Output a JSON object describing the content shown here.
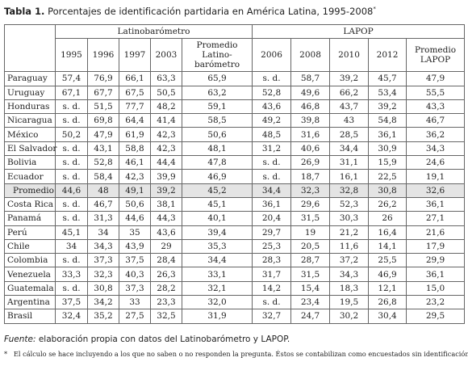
{
  "header": {
    "label": "Tabla 1.",
    "title": "Porcentajes de identificación partidaria en América Latina, 1995-2008",
    "title_mark": "*"
  },
  "table": {
    "groups": [
      "Latinobarómetro",
      "LAPOP"
    ],
    "columns": [
      [
        "1995"
      ],
      [
        "1996"
      ],
      [
        "1997"
      ],
      [
        "2003"
      ],
      [
        "Promedio",
        "Latino-",
        "barómetro"
      ],
      [
        "2006"
      ],
      [
        "2008"
      ],
      [
        "2010"
      ],
      [
        "2012"
      ],
      [
        "Promedio",
        "LAPOP"
      ]
    ],
    "rows": [
      [
        "Paraguay",
        "57,4",
        "76,9",
        "66,1",
        "63,3",
        "65,9",
        "s. d.",
        "58,7",
        "39,2",
        "45,7",
        "47,9"
      ],
      [
        "Uruguay",
        "67,1",
        "67,7",
        "67,5",
        "50,5",
        "63,2",
        "52,8",
        "49,6",
        "66,2",
        "53,4",
        "55,5"
      ],
      [
        "Honduras",
        "s. d.",
        "51,5",
        "77,7",
        "48,2",
        "59,1",
        "43,6",
        "46,8",
        "43,7",
        "39,2",
        "43,3"
      ],
      [
        "Nicaragua",
        "s. d.",
        "69,8",
        "64,4",
        "41,4",
        "58,5",
        "49,2",
        "39,8",
        "43",
        "54,8",
        "46,7"
      ],
      [
        "México",
        "50,2",
        "47,9",
        "61,9",
        "42,3",
        "50,6",
        "48,5",
        "31,6",
        "28,5",
        "36,1",
        "36,2"
      ],
      [
        "El Salvador",
        "s. d.",
        "43,1",
        "58,8",
        "42,3",
        "48,1",
        "31,2",
        "40,6",
        "34,4",
        "30,9",
        "34,3"
      ],
      [
        "Bolivia",
        "s. d.",
        "52,8",
        "46,1",
        "44,4",
        "47,8",
        "s. d.",
        "26,9",
        "31,1",
        "15,9",
        "24,6"
      ],
      [
        "Ecuador",
        "s. d.",
        "58,4",
        "42,3",
        "39,9",
        "46,9",
        "s. d.",
        "18,7",
        "16,1",
        "22,5",
        "19,1"
      ],
      [
        "Promedio",
        "44,6",
        "48",
        "49,1",
        "39,2",
        "45,2",
        "34,4",
        "32,3",
        "32,8",
        "30,8",
        "32,6"
      ],
      [
        "Costa Rica",
        "s. d.",
        "46,7",
        "50,6",
        "38,1",
        "45,1",
        "36,1",
        "29,6",
        "52,3",
        "26,2",
        "36,1"
      ],
      [
        "Panamá",
        "s. d.",
        "31,3",
        "44,6",
        "44,3",
        "40,1",
        "20,4",
        "31,5",
        "30,3",
        "26",
        "27,1"
      ],
      [
        "Perú",
        "45,1",
        "34",
        "35",
        "43,6",
        "39,4",
        "29,7",
        "19",
        "21,2",
        "16,4",
        "21,6"
      ],
      [
        "Chile",
        "34",
        "34,3",
        "43,9",
        "29",
        "35,3",
        "25,3",
        "20,5",
        "11,6",
        "14,1",
        "17,9"
      ],
      [
        "Colombia",
        "s. d.",
        "37,3",
        "37,5",
        "28,4",
        "34,4",
        "28,3",
        "28,7",
        "37,2",
        "25,5",
        "29,9"
      ],
      [
        "Venezuela",
        "33,3",
        "32,3",
        "40,3",
        "26,3",
        "33,1",
        "31,7",
        "31,5",
        "34,3",
        "46,9",
        "36,1"
      ],
      [
        "Guatemala",
        "s. d.",
        "30,8",
        "37,3",
        "28,2",
        "32,1",
        "14,2",
        "15,4",
        "18,3",
        "12,1",
        "15,0"
      ],
      [
        "Argentina",
        "37,5",
        "34,2",
        "33",
        "23,3",
        "32,0",
        "s. d.",
        "23,4",
        "19,5",
        "26,8",
        "23,2"
      ],
      [
        "Brasil",
        "32,4",
        "35,2",
        "27,5",
        "32,5",
        "31,9",
        "32,7",
        "24,7",
        "30,2",
        "30,4",
        "29,5"
      ]
    ]
  },
  "footer": {
    "source_label": "Fuente:",
    "source": "elaboración propia con datos del Latinobarómetro y LAPOP.",
    "note_mark": "*",
    "note": "El cálculo se hace incluyendo a los que no saben o no responden la pregunta. Éstos se contabilizan como encuestados sin identificación."
  }
}
